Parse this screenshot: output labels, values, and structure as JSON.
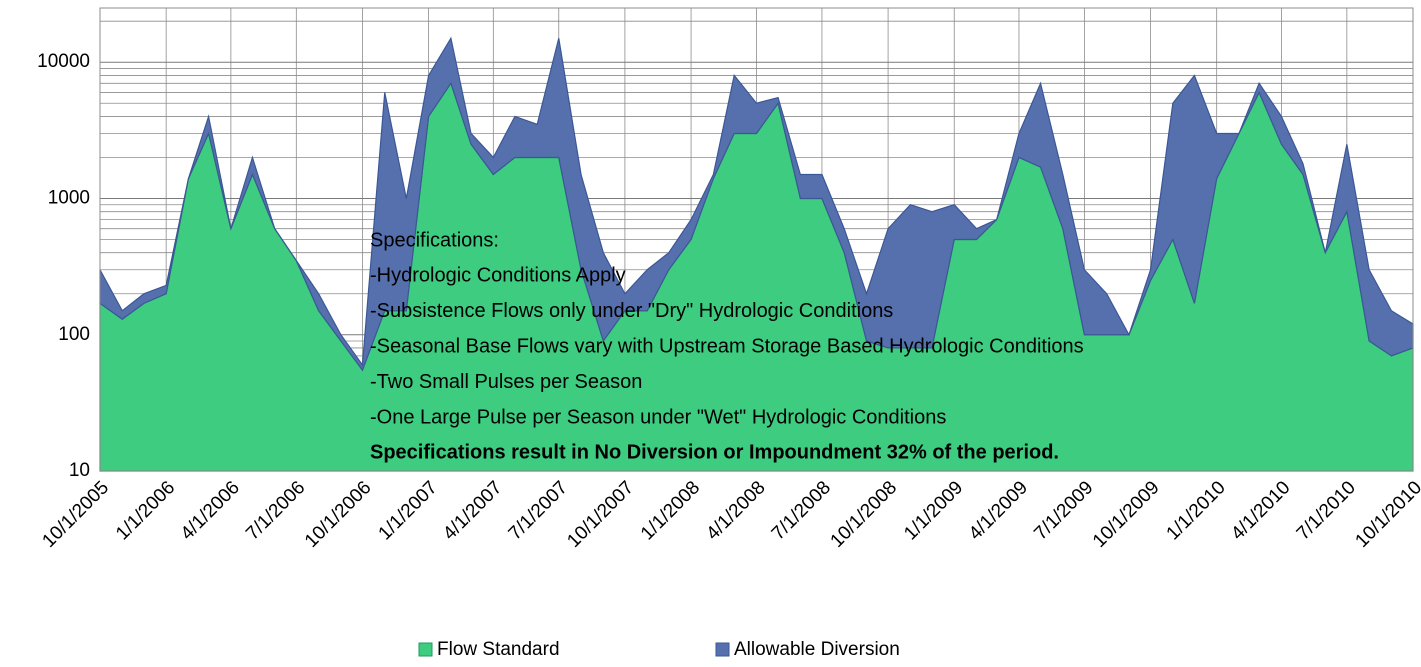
{
  "chart_data": {
    "type": "stacked_area",
    "log_y": true,
    "grid": true,
    "legend": "bottom",
    "ylim": [
      10,
      25000
    ],
    "yticks": [
      10,
      100,
      1000,
      10000
    ],
    "minor_yticks": [
      20,
      30,
      40,
      50,
      60,
      70,
      80,
      90,
      200,
      300,
      400,
      500,
      600,
      700,
      800,
      900,
      2000,
      3000,
      4000,
      5000,
      6000,
      7000,
      8000,
      9000,
      20000
    ],
    "xlim": [
      "10/1/2005",
      "10/1/2010"
    ],
    "xticks": [
      "10/1/2005",
      "1/1/2006",
      "4/1/2006",
      "7/1/2006",
      "10/1/2006",
      "1/1/2007",
      "4/1/2007",
      "7/1/2007",
      "10/1/2007",
      "1/1/2008",
      "4/1/2008",
      "7/1/2008",
      "10/1/2008",
      "1/1/2009",
      "4/1/2009",
      "7/1/2009",
      "10/1/2009",
      "1/1/2010",
      "4/1/2010",
      "7/1/2010",
      "10/1/2010"
    ],
    "x": [
      "10/1/2005",
      "11/1/2005",
      "12/1/2005",
      "1/1/2006",
      "2/1/2006",
      "3/1/2006",
      "4/1/2006",
      "5/1/2006",
      "6/1/2006",
      "7/1/2006",
      "8/1/2006",
      "9/1/2006",
      "10/1/2006",
      "11/1/2006",
      "12/1/2006",
      "1/1/2007",
      "2/1/2007",
      "3/1/2007",
      "4/1/2007",
      "5/1/2007",
      "6/1/2007",
      "7/1/2007",
      "8/1/2007",
      "9/1/2007",
      "10/1/2007",
      "11/1/2007",
      "12/1/2007",
      "1/1/2008",
      "2/1/2008",
      "3/1/2008",
      "4/1/2008",
      "5/1/2008",
      "6/1/2008",
      "7/1/2008",
      "8/1/2008",
      "9/1/2008",
      "10/1/2008",
      "11/1/2008",
      "12/1/2008",
      "1/1/2009",
      "2/1/2009",
      "3/1/2009",
      "4/1/2009",
      "5/1/2009",
      "6/1/2009",
      "7/1/2009",
      "8/1/2009",
      "9/1/2009",
      "10/1/2009",
      "11/1/2009",
      "12/1/2009",
      "1/1/2010",
      "2/1/2010",
      "3/1/2010",
      "4/1/2010",
      "5/1/2010",
      "6/1/2010",
      "7/1/2010",
      "8/1/2010",
      "9/1/2010",
      "10/1/2010"
    ],
    "series": [
      {
        "name": "Flow Standard",
        "color": "#3dcc80",
        "stroke": "#239a5a",
        "values": [
          170,
          130,
          170,
          200,
          1400,
          3000,
          600,
          1500,
          600,
          350,
          150,
          90,
          55,
          150,
          150,
          4000,
          7000,
          2500,
          1500,
          2000,
          2000,
          2000,
          300,
          90,
          150,
          150,
          300,
          500,
          1400,
          3000,
          3000,
          5000,
          1000,
          1000,
          400,
          90,
          80,
          80,
          80,
          500,
          500,
          700,
          2000,
          1700,
          600,
          100,
          100,
          100,
          250,
          500,
          170,
          1400,
          3000,
          6000,
          2500,
          1500,
          400,
          800,
          90,
          70,
          80
        ]
      },
      {
        "name": "Allowable Diversion",
        "color": "#5570ad",
        "stroke": "#3b5796",
        "values": [
          130,
          20,
          30,
          30,
          0,
          1000,
          0,
          500,
          0,
          0,
          50,
          10,
          5,
          5850,
          850,
          4000,
          8000,
          500,
          500,
          2000,
          1500,
          13000,
          1200,
          310,
          50,
          150,
          100,
          200,
          100,
          5000,
          2000,
          500,
          500,
          500,
          200,
          110,
          520,
          820,
          720,
          400,
          100,
          0,
          1000,
          5300,
          900,
          200,
          100,
          0,
          50,
          4500,
          7830,
          1600,
          0,
          1000,
          1500,
          300,
          0,
          1700,
          210,
          80,
          40
        ]
      }
    ],
    "annotation": [
      "Specifications:",
      "-Hydrologic Conditions Apply",
      "-Subsistence Flows only under \"Dry\" Hydrologic Conditions",
      "-Seasonal  Base Flows vary with Upstream Storage Based Hydrologic Conditions",
      "-Two Small Pulses per Season",
      "-One Large Pulse per Season under \"Wet\" Hydrologic Conditions"
    ],
    "annotation_bold": "Specifications result in No Diversion or Impoundment 32% of the period."
  }
}
